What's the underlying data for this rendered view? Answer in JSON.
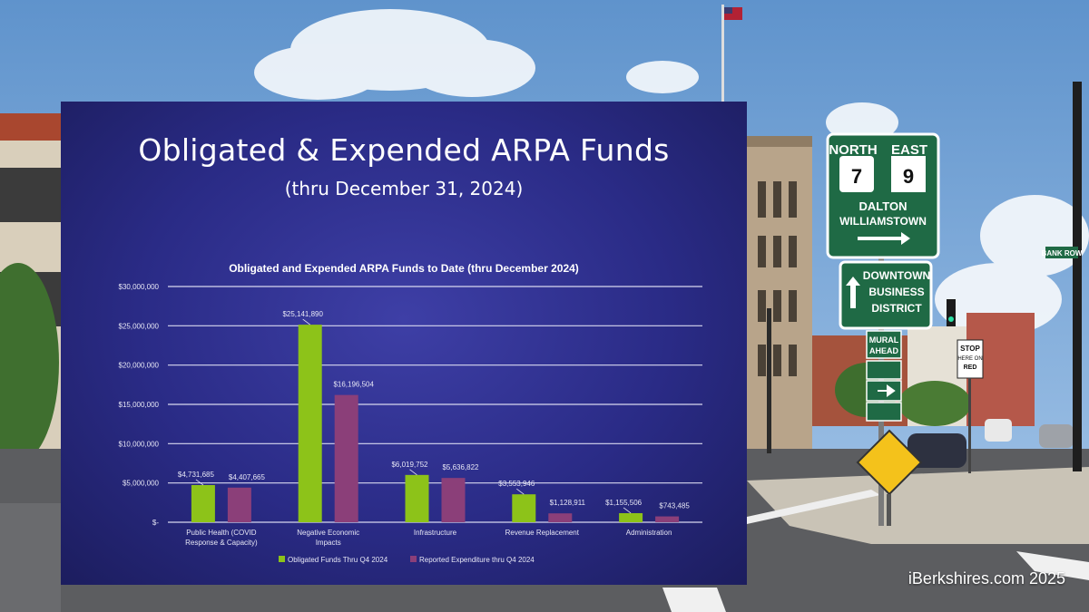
{
  "slide": {
    "title": "Obligated & Expended ARPA Funds",
    "subtitle": "(thru December 31, 2024)"
  },
  "watermark": "iBerkshires.com 2025",
  "signs": {
    "route_north": "NORTH",
    "route_east": "EAST",
    "route_7": "7",
    "route_9": "9",
    "dest_1": "DALTON",
    "dest_2": "WILLIAMSTOWN",
    "downtown_1": "DOWNTOWN",
    "downtown_2": "BUSINESS",
    "downtown_3": "DISTRICT",
    "mural_1": "MURAL",
    "mural_2": "AHEAD",
    "stop_1": "STOP",
    "stop_2": "HERE ON",
    "stop_3": "RED",
    "street": "BANK ROW"
  },
  "colors": {
    "obligated": "#8dc319",
    "expended": "#8b3f79",
    "slide_bg": "#2a2b86",
    "sky": "#6fa3d8"
  },
  "chart_data": {
    "type": "bar",
    "title": "Obligated and Expended ARPA Funds to Date (thru December 2024)",
    "categories": [
      "Public Health (COVID Response & Capacity)",
      "Negative Economic Impacts",
      "Infrastructure",
      "Revenue Replacement",
      "Administration"
    ],
    "series": [
      {
        "name": "Obligated Funds Thru Q4 2024",
        "values": [
          4731685,
          25141890,
          6019752,
          3553946,
          1155506
        ],
        "labels": [
          "$4,731,685",
          "$25,141,890",
          "$6,019,752",
          "$3,553,946",
          "$1,155,506"
        ]
      },
      {
        "name": "Reported Expenditure thru Q4 2024",
        "values": [
          4407665,
          16196504,
          5636822,
          1128911,
          743485
        ],
        "labels": [
          "$4,407,665",
          "$16,196,504",
          "$5,636,822",
          "$1,128,911",
          "$743,485"
        ]
      }
    ],
    "y_ticks": [
      "$-",
      "$5,000,000",
      "$10,000,000",
      "$15,000,000",
      "$20,000,000",
      "$25,000,000",
      "$30,000,000"
    ],
    "ylim": [
      0,
      30000000
    ],
    "grid": true,
    "legend": "bottom"
  }
}
